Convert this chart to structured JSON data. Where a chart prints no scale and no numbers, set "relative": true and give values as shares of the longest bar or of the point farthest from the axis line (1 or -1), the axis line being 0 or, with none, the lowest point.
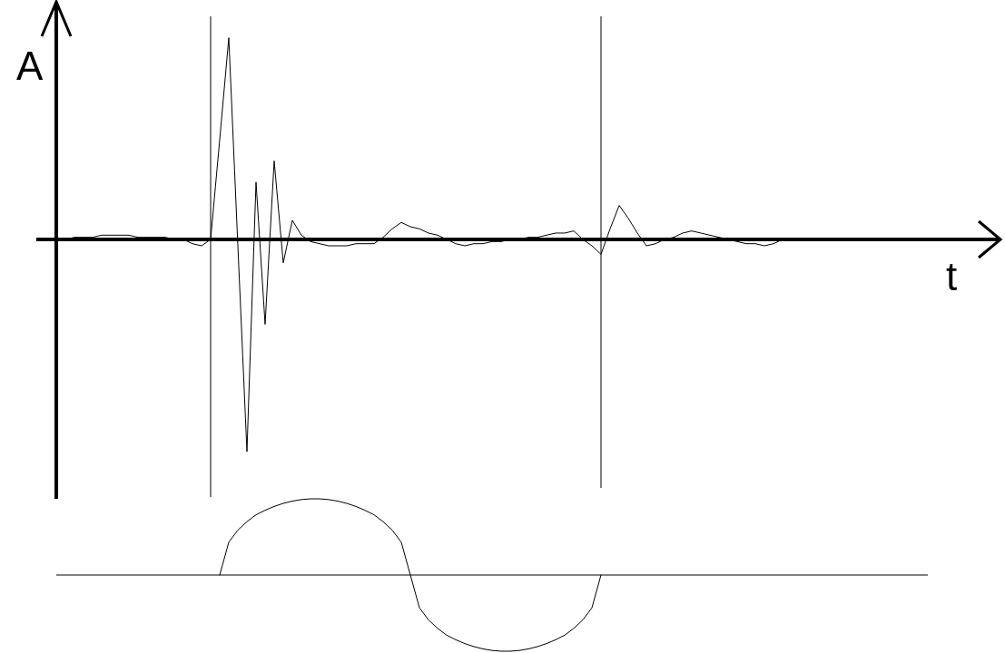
{
  "chart_data": [
    {
      "type": "line",
      "xlabel": "t",
      "ylabel": "A",
      "relative": true,
      "categories": [
        null,
        null,
        null,
        null,
        null,
        null,
        null,
        null,
        null,
        null,
        null,
        null,
        null,
        null,
        null,
        null,
        null,
        null,
        null,
        null,
        null,
        null,
        null,
        null,
        null,
        null,
        null,
        null,
        null,
        null,
        null,
        null,
        null,
        null,
        null,
        null,
        null,
        null,
        null,
        null,
        null,
        null,
        null,
        null,
        null,
        null,
        null,
        null,
        null,
        null,
        null,
        null,
        null,
        null,
        null,
        null,
        null,
        null,
        null,
        null,
        null,
        null,
        null,
        null,
        null,
        null,
        null,
        null,
        null,
        null,
        null,
        null,
        null,
        null,
        null,
        null,
        null,
        null,
        null,
        null,
        null,
        null,
        null,
        null,
        null,
        null,
        null,
        null,
        null,
        null,
        null,
        null,
        null,
        null,
        null,
        null,
        null,
        null,
        null,
        null,
        null,
        null,
        null,
        null,
        null
      ],
      "series": [
        {
          "color": "#000000",
          "values": [
            0,
            0,
            0.01,
            0.01,
            0.01,
            0.02,
            0.02,
            0.02,
            0.02,
            0.01,
            0.01,
            0.01,
            0.01,
            0,
            0,
            -0.02,
            -0.03,
            0,
            0.47,
            0.95,
            -0.03,
            -1,
            0.27,
            -0.4,
            0.37,
            -0.11,
            0.09,
            0.02,
            -0.01,
            -0.02,
            -0.03,
            -0.03,
            -0.03,
            -0.02,
            -0.02,
            -0.02,
            0.01,
            0.05,
            0.08,
            0.06,
            0.05,
            0.03,
            0.02,
            0,
            -0.02,
            -0.03,
            -0.02,
            -0.02,
            -0.01,
            -0.01,
            0,
            0,
            0.01,
            0.01,
            0.02,
            0.03,
            0.03,
            0.04,
            0,
            -0.03,
            -0.07,
            0.05,
            0.16,
            0.1,
            0.03,
            -0.03,
            -0.02,
            0,
            0.01,
            0.03,
            0.04,
            0.03,
            0.02,
            0.01,
            0,
            -0.01,
            -0.02,
            -0.02,
            -0.03,
            -0.02,
            0,
            null,
            null,
            null,
            null,
            null,
            null,
            null,
            null,
            null,
            null,
            null,
            null,
            null,
            null,
            null,
            null,
            null,
            null,
            null,
            null,
            null,
            null,
            null,
            null
          ]
        }
      ]
    },
    {
      "type": "line",
      "relative": true,
      "categories": [
        null,
        null,
        null,
        null,
        null,
        null,
        null,
        null,
        null,
        null,
        null,
        null,
        null,
        null,
        null,
        null,
        null,
        null,
        null,
        null,
        null,
        null,
        null,
        null,
        null,
        null,
        null,
        null,
        null,
        null,
        null,
        null,
        null,
        null,
        null,
        null,
        null,
        null,
        null,
        null,
        null,
        null,
        null,
        null,
        null,
        null,
        null,
        null,
        null,
        null,
        null,
        null,
        null,
        null,
        null,
        null,
        null,
        null,
        null,
        null,
        null,
        null,
        null,
        null,
        null,
        null,
        null,
        null,
        null,
        null,
        null,
        null,
        null,
        null,
        null,
        null,
        null,
        null,
        null,
        null,
        null,
        null,
        null,
        null,
        null,
        null,
        null,
        null,
        null,
        null,
        null,
        null,
        null,
        null,
        null,
        null,
        null
      ],
      "series": [
        {
          "color": "#000000",
          "values": [
            null,
            null,
            null,
            null,
            null,
            null,
            null,
            null,
            null,
            null,
            null,
            null,
            null,
            null,
            null,
            null,
            null,
            null,
            0,
            0.43,
            0.59,
            0.7,
            0.79,
            0.85,
            0.9,
            0.94,
            0.97,
            0.99,
            1,
            1,
            0.99,
            0.97,
            0.94,
            0.9,
            0.85,
            0.79,
            0.7,
            0.59,
            0.43,
            0,
            -0.43,
            -0.59,
            -0.7,
            -0.79,
            -0.85,
            -0.9,
            -0.94,
            -0.97,
            -0.99,
            -1,
            -1,
            -0.99,
            -0.97,
            -0.94,
            -0.9,
            -0.85,
            -0.79,
            -0.7,
            -0.59,
            -0.43,
            0,
            null,
            null,
            null,
            null,
            null,
            null,
            null,
            null,
            null,
            null,
            null,
            null,
            null,
            null,
            null,
            null,
            null,
            null,
            null,
            null,
            null,
            null,
            null,
            null,
            null,
            null,
            null,
            null,
            null,
            null,
            null,
            null,
            null,
            null,
            null,
            null
          ]
        }
      ]
    }
  ]
}
